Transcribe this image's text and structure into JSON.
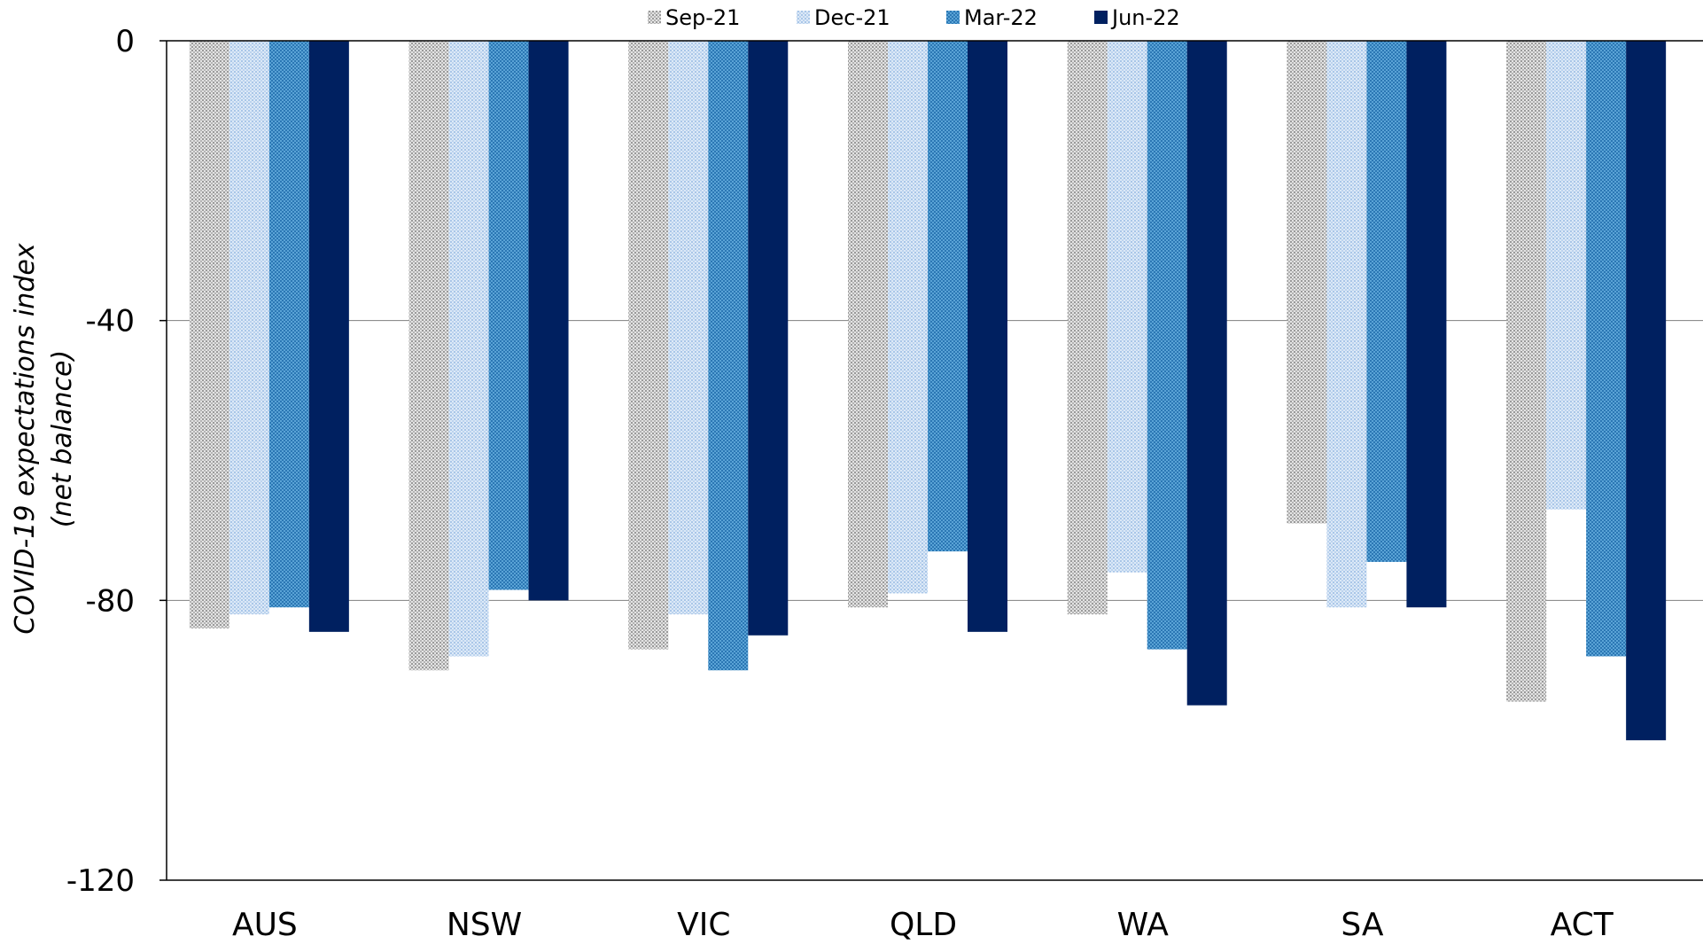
{
  "chart_data": {
    "type": "bar",
    "categories": [
      "AUS",
      "NSW",
      "VIC",
      "QLD",
      "WA",
      "SA",
      "ACT"
    ],
    "series": [
      {
        "name": "Sep-21",
        "values": [
          -84,
          -90,
          -87,
          -81,
          -82,
          -69,
          -94.5
        ],
        "color": "#c8c8c8",
        "pattern": "dots-grey"
      },
      {
        "name": "Dec-21",
        "values": [
          -82,
          -88,
          -82,
          -79,
          -76,
          -81,
          -67
        ],
        "color": "#c5d9f1",
        "pattern": "dots-lightblue"
      },
      {
        "name": "Mar-22",
        "values": [
          -81,
          -78.5,
          -90,
          -73,
          -87,
          -74.5,
          -88
        ],
        "color": "#3f8fc9",
        "pattern": "checker-blue"
      },
      {
        "name": "Jun-22",
        "values": [
          -84.5,
          -80,
          -85,
          -84.5,
          -95,
          -81,
          -100
        ],
        "color": "#002060",
        "pattern": "solid"
      }
    ],
    "ylabel": "COVID-19 expectations index",
    "ylabel_sub": "(net balance)",
    "xlabel": "",
    "ylim": [
      -120,
      0
    ],
    "yticks": [
      0,
      -40,
      -80,
      -120
    ],
    "ytick_labels": [
      "0",
      "-40",
      "-80",
      "-120"
    ],
    "grid": "horizontal",
    "legend_position": "top-center"
  }
}
